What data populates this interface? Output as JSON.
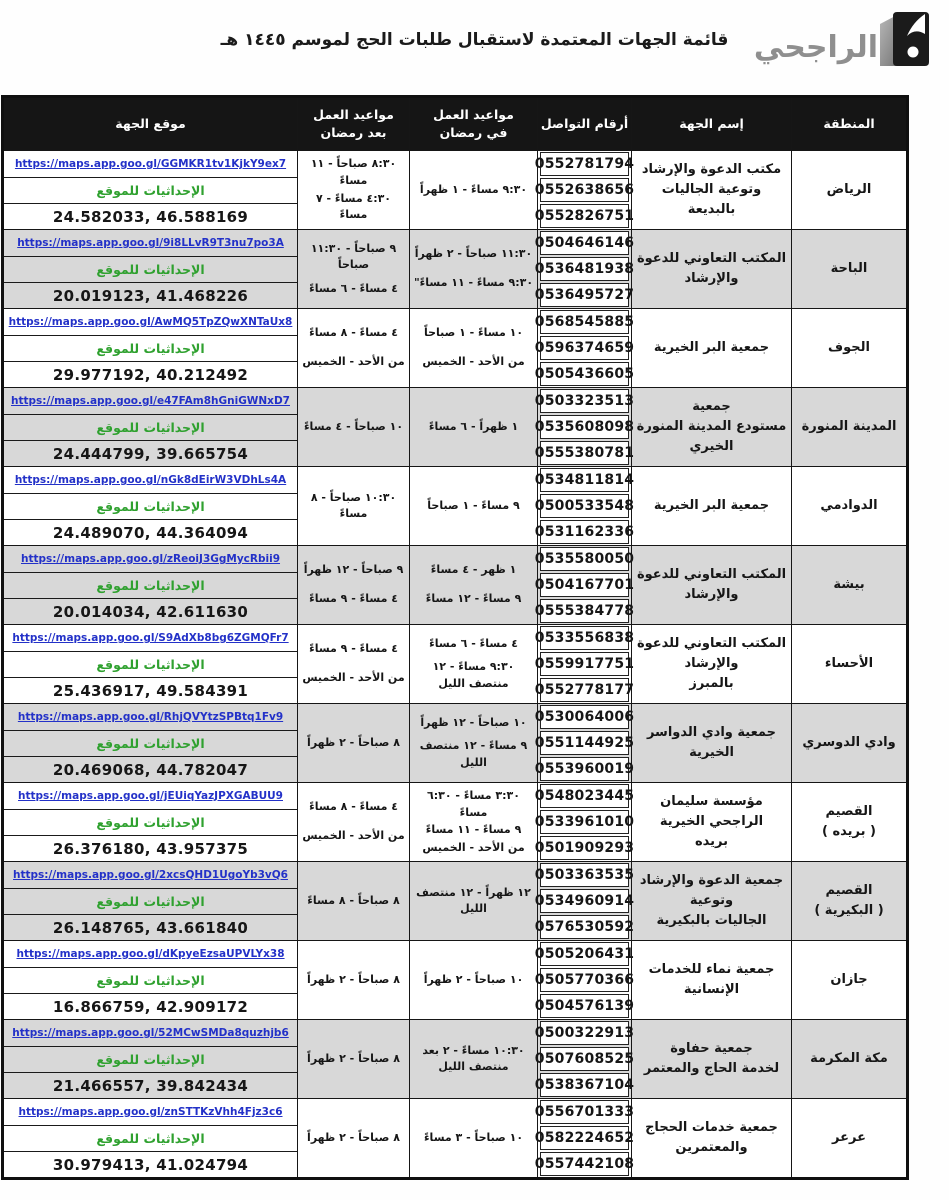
{
  "page": {
    "title": "قائمة الجهات المعتمدة لاستقبال طلبات الحج لموسم ١٤٤٥ هـ"
  },
  "logo": {
    "name": "الراجحي",
    "emblem_icon": "alrajhi-emblem"
  },
  "colors": {
    "header_bg": "#151515",
    "row_stripe": "#d8d8d8",
    "link_blue": "#2331c8",
    "coords_label_green": "#2fa12f"
  },
  "table": {
    "headers": {
      "region": "المنطقة",
      "entity": "إسم الجهة",
      "phones": "أرقام التواصل",
      "ramadan": "مواعيد العمل\nفي رمضان",
      "after_ramadan": "مواعيد العمل\nبعد رمضان",
      "location": "موقع الجهة"
    },
    "coords_label": "الإحداثيات للموقع",
    "rows": [
      {
        "region": "الرياض",
        "entity": "مكتب الدعوة والإرشاد وتوعية الجاليات بالبديعة",
        "phones": [
          "0552781794",
          "0552638656",
          "0552826751"
        ],
        "ramadan": [
          "٩:٣٠ مساءً - ١ ظهراً"
        ],
        "after_ramadan": [
          "٨:٣٠ صباحاً - ١١ مساءً",
          "٤:٣٠ مساءً - ٧ مساءً"
        ],
        "map_link": "https://maps.app.goo.gl/GGMKR1tv1KjkY9ex7",
        "coords": "24.582033, 46.588169"
      },
      {
        "region": "الباحة",
        "entity": "المكتب التعاوني للدعوة والإرشاد",
        "phones": [
          "0504646146",
          "0536481938",
          "0536495727"
        ],
        "ramadan": [
          "١١:٣٠ صباحاً - ٢ ظهراً",
          "٩:٣٠ مساءً - ١١ مساءً\""
        ],
        "after_ramadan": [
          "٩ صباحاً - ١١:٣٠ صباحاً",
          "٤ مساءً - ٦ مساءً"
        ],
        "map_link": "https://maps.app.goo.gl/9i8LLvR9T3nu7po3A",
        "coords": "20.019123, 41.468226"
      },
      {
        "region": "الجوف",
        "entity": "جمعية البر الخيرية",
        "phones": [
          "0568545885",
          "0596374659",
          "0505436605"
        ],
        "ramadan": [
          "١٠ مساءً - ١ صباحاً",
          "من الأحد - الخميس"
        ],
        "after_ramadan": [
          "٤ مساءً - ٨ مساءً",
          "من الأحد - الخميس"
        ],
        "map_link": "https://maps.app.goo.gl/AwMQ5TpZQwXNTaUx8",
        "coords": "29.977192, 40.212492"
      },
      {
        "region": "المدينة المنورة",
        "entity": "جمعية\nمستودع المدينة المنورة الخيري",
        "phones": [
          "0503323513",
          "0535608098",
          "0555380781"
        ],
        "ramadan": [
          "١ ظهراً - ٦ مساءً"
        ],
        "after_ramadan": [
          "١٠ صباحاً - ٤ مساءً"
        ],
        "map_link": "https://maps.app.goo.gl/e47FAm8hGniGWNxD7",
        "coords": "24.444799, 39.665754"
      },
      {
        "region": "الدوادمي",
        "entity": "جمعية البر الخيرية",
        "phones": [
          "0534811814",
          "0500533548",
          "0531162336"
        ],
        "ramadan": [
          "٩ مساءً - ١ صباحاً"
        ],
        "after_ramadan": [
          "١٠:٣٠ صباحاً - ٨ مساءً"
        ],
        "map_link": "https://maps.app.goo.gl/nGk8dEirW3VDhLs4A",
        "coords": "24.489070, 44.364094"
      },
      {
        "region": "بيشة",
        "entity": "المكتب التعاوني للدعوة والإرشاد",
        "phones": [
          "0535580050",
          "0504167701",
          "0555384778"
        ],
        "ramadan": [
          "١ ظهر - ٤ مساءً",
          "٩ مساءً - ١٢ مساءً"
        ],
        "after_ramadan": [
          "٩ صباحاً - ١٢ ظهراً",
          "٤ مساءً - ٩ مساءً"
        ],
        "map_link": "https://maps.app.goo.gl/zReoiJ3GgMycRbii9",
        "coords": "20.014034, 42.611630"
      },
      {
        "region": "الأحساء",
        "entity": "المكتب التعاوني للدعوة والإرشاد\nبالمبرز",
        "phones": [
          "0533556838",
          "0559917751",
          "0552778177"
        ],
        "ramadan": [
          "٤ مساءً - ٦ مساءً",
          "٩:٣٠ مساءً - ١٢ منتصف الليل"
        ],
        "after_ramadan": [
          "٤ مساءً - ٩ مساءً",
          "من الأحد - الخميس"
        ],
        "map_link": "https://maps.app.goo.gl/S9AdXb8bg6ZGMQFr7",
        "coords": "25.436917, 49.584391"
      },
      {
        "region": "وادي الدوسري",
        "entity": "جمعية وادي الدواسر الخيرية",
        "phones": [
          "0530064006",
          "0551144925",
          "0553960019"
        ],
        "ramadan": [
          "١٠ صباحاً - ١٢ ظهراً",
          "٩ مساءً - ١٢ منتصف الليل"
        ],
        "after_ramadan": [
          "٨ صباحاً - ٢ ظهراً"
        ],
        "map_link": "https://maps.app.goo.gl/RhjQVYtzSPBtq1Fv9",
        "coords": "20.469068, 44.782047"
      },
      {
        "region": "القصيم\n( بريده )",
        "entity": "مؤسسة سليمان الراجحي الخيرية\nبريده",
        "phones": [
          "0548023445",
          "0533961010",
          "0501909293"
        ],
        "ramadan": [
          "٣:٣٠ مساءً - ٦:٣٠ مساءً",
          "٩ مساءً - ١١ مساءً",
          "من الأحد - الخميس"
        ],
        "after_ramadan": [
          "٤ مساءً - ٨ مساءً",
          "من الأحد - الخميس"
        ],
        "map_link": "https://maps.app.goo.gl/jEUiqYazJPXGABUU9",
        "coords": "26.376180, 43.957375"
      },
      {
        "region": "القصيم\n( البكيرية )",
        "entity": "جمعية الدعوة والإرشاد وتوعية\nالجاليات بالبكيرية",
        "phones": [
          "0503363535",
          "0534960914",
          "0576530592"
        ],
        "ramadan": [
          "١٢ ظهراً - ١٢ منتصف الليل"
        ],
        "after_ramadan": [
          "٨ صباحاً - ٨ مساءً"
        ],
        "map_link": "https://maps.app.goo.gl/2xcsQHD1UgoYb3vQ6",
        "coords": "26.148765, 43.661840"
      },
      {
        "region": "جازان",
        "entity": "جمعية نماء للخدمات الإنسانية",
        "phones": [
          "0505206431",
          "0505770366",
          "0504576139"
        ],
        "ramadan": [
          "١٠ صباحاً - ٢ ظهراً"
        ],
        "after_ramadan": [
          "٨ صباحاً - ٢ ظهراً"
        ],
        "map_link": "https://maps.app.goo.gl/dKpyeEzsaUPVLYx38",
        "coords": "16.866759, 42.909172"
      },
      {
        "region": "مكة المكرمة",
        "entity": "جمعية حفاوة\nلخدمة الحاج والمعتمر",
        "phones": [
          "0500322913",
          "0507608525",
          "0538367104"
        ],
        "ramadan": [
          "١٠:٣٠ مساءً - ٢ بعد منتصف الليل"
        ],
        "after_ramadan": [
          "٨ صباحاً - ٢ ظهراً"
        ],
        "map_link": "https://maps.app.goo.gl/52MCwSMDa8quzhjb6",
        "coords": "21.466557, 39.842434"
      },
      {
        "region": "عرعر",
        "entity": "جمعية خدمات الحجاج والمعتمرين",
        "phones": [
          "0556701333",
          "0582224652",
          "0557442108"
        ],
        "ramadan": [
          "١٠ صباحاً - ٣ مساءً"
        ],
        "after_ramadan": [
          "٨ صباحاً - ٢ ظهراً"
        ],
        "map_link": "https://maps.app.goo.gl/znSTTKzVhh4Fjz3c6",
        "coords": "30.979413, 41.024794"
      }
    ]
  }
}
